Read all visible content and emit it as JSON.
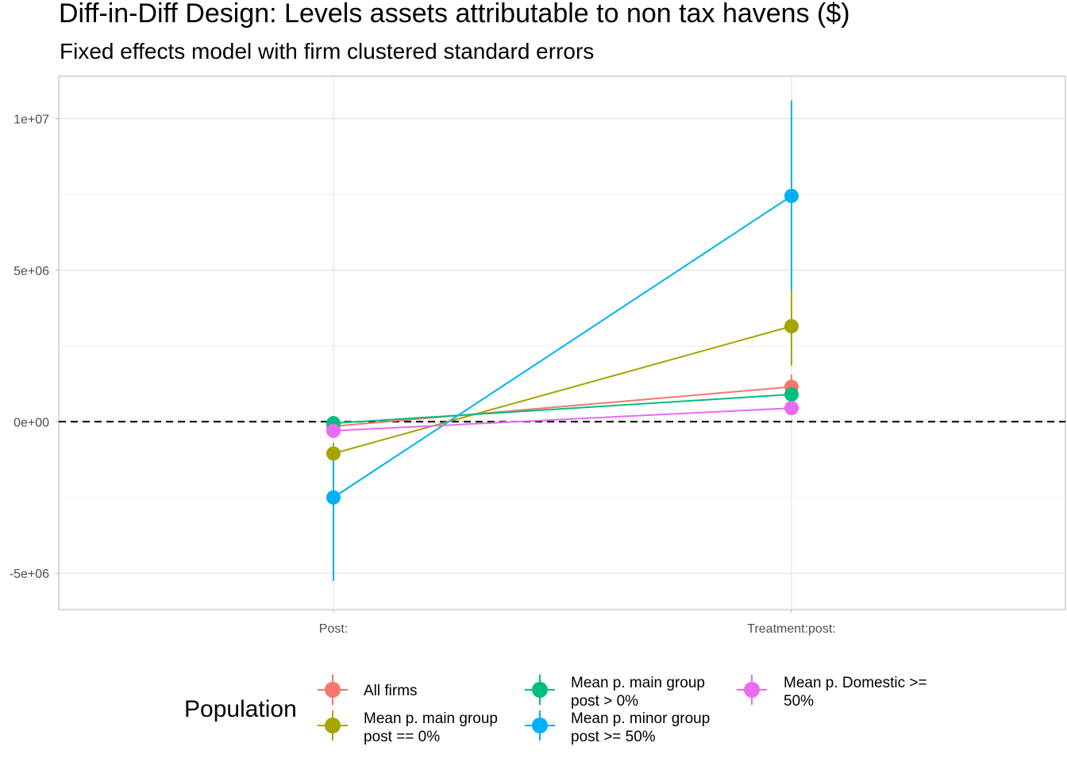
{
  "chart_data": {
    "type": "scatter",
    "title": "Diff-in-Diff Design: Levels assets attributable to non tax havens  ($)",
    "subtitle": "Fixed effects model with firm clustered standard errors",
    "xlabel": "",
    "ylabel": "",
    "categories": [
      "Post:",
      "Treatment:post:"
    ],
    "ylim": [
      -6200000,
      11400000
    ],
    "yticks": [
      -5000000,
      0,
      5000000,
      10000000
    ],
    "ytick_labels": [
      "-5e+06",
      "0e+00",
      "5e+06",
      "1e+07"
    ],
    "reference_line": 0,
    "grid": true,
    "legend_title": "Population",
    "legend_position": "bottom",
    "series": [
      {
        "name": "All firms",
        "color": "#F8766D",
        "values": [
          -150000,
          1150000
        ],
        "lower": [
          -300000,
          800000
        ],
        "upper": [
          0,
          1550000
        ]
      },
      {
        "name": "Mean p. main group post == 0%",
        "color": "#A3A500",
        "values": [
          -1050000,
          3150000
        ],
        "lower": [
          -1400000,
          1850000
        ],
        "upper": [
          -700000,
          4350000
        ]
      },
      {
        "name": "Mean p. main group post > 0%",
        "color": "#00BF7D",
        "values": [
          -50000,
          900000
        ],
        "lower": [
          -200000,
          700000
        ],
        "upper": [
          100000,
          1100000
        ]
      },
      {
        "name": "Mean p. minor group post >= 50%",
        "color": "#00B0F6",
        "values": [
          -2500000,
          7450000
        ],
        "lower": [
          -5250000,
          4350000
        ],
        "upper": [
          -1000000,
          10600000
        ]
      },
      {
        "name": "Mean p. Domestic >= 50%",
        "color": "#E76BF3",
        "values": [
          -300000,
          450000
        ],
        "lower": [
          -450000,
          300000
        ],
        "upper": [
          -150000,
          600000
        ]
      }
    ]
  },
  "legend": {
    "title": "Population",
    "entries": [
      {
        "lines": [
          "All firms"
        ],
        "color": "#F8766D"
      },
      {
        "lines": [
          "Mean p. main group",
          "post == 0%"
        ],
        "color": "#A3A500"
      },
      {
        "lines": [
          "Mean p. main group",
          "post > 0%"
        ],
        "color": "#00BF7D"
      },
      {
        "lines": [
          "Mean p. minor group",
          "post >= 50%"
        ],
        "color": "#00B0F6"
      },
      {
        "lines": [
          "Mean p. Domestic >=",
          "50%"
        ],
        "color": "#E76BF3"
      }
    ]
  }
}
